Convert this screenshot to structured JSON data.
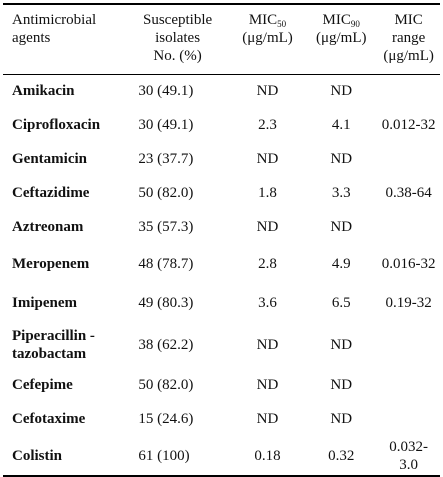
{
  "table": {
    "headers": {
      "agent": [
        "Antimicrobial",
        "agents"
      ],
      "susceptible": [
        "Susceptible",
        "isolates",
        "No. (%)"
      ],
      "mic50": {
        "base": "MIC",
        "sub": "50",
        "unit": "(μg/mL)"
      },
      "mic90": {
        "base": "MIC",
        "sub": "90",
        "unit": "(μg/mL)"
      },
      "range": [
        "MIC",
        "range",
        "(μg/mL)"
      ]
    },
    "rows": [
      {
        "agent": [
          "Amikacin"
        ],
        "susceptible": "30 (49.1)",
        "mic50": "ND",
        "mic90": "ND",
        "range": []
      },
      {
        "agent": [
          "Ciprofloxacin"
        ],
        "susceptible": "30 (49.1)",
        "mic50": "2.3",
        "mic90": "4.1",
        "range": [
          "0.012-32"
        ]
      },
      {
        "agent": [
          "Gentamicin"
        ],
        "susceptible": "23 (37.7)",
        "mic50": "ND",
        "mic90": "ND",
        "range": []
      },
      {
        "agent": [
          "Ceftazidime"
        ],
        "susceptible": "50 (82.0)",
        "mic50": "1.8",
        "mic90": "3.3",
        "range": [
          "0.38-64"
        ]
      },
      {
        "agent": [
          "Aztreonam"
        ],
        "susceptible": "35 (57.3)",
        "mic50": "ND",
        "mic90": "ND",
        "range": []
      },
      {
        "agent": [
          "Meropenem"
        ],
        "susceptible": "48 (78.7)",
        "mic50": "2.8",
        "mic90": "4.9",
        "range": [
          "0.016-32"
        ]
      },
      {
        "agent": [
          "Imipenem"
        ],
        "susceptible": "49 (80.3)",
        "mic50": "3.6",
        "mic90": "6.5",
        "range": [
          "0.19-32"
        ]
      },
      {
        "agent": [
          "Piperacillin -",
          "tazobactam"
        ],
        "susceptible": "38 (62.2)",
        "mic50": "ND",
        "mic90": "ND",
        "range": []
      },
      {
        "agent": [
          "Cefepime"
        ],
        "susceptible": "50 (82.0)",
        "mic50": "ND",
        "mic90": "ND",
        "range": []
      },
      {
        "agent": [
          "Cefotaxime"
        ],
        "susceptible": "15 (24.6)",
        "mic50": "ND",
        "mic90": "ND",
        "range": []
      },
      {
        "agent": [
          "Colistin"
        ],
        "susceptible": "61 (100)",
        "mic50": "0.18",
        "mic90": "0.32",
        "range": [
          "0.032-",
          "3.0"
        ]
      }
    ]
  }
}
